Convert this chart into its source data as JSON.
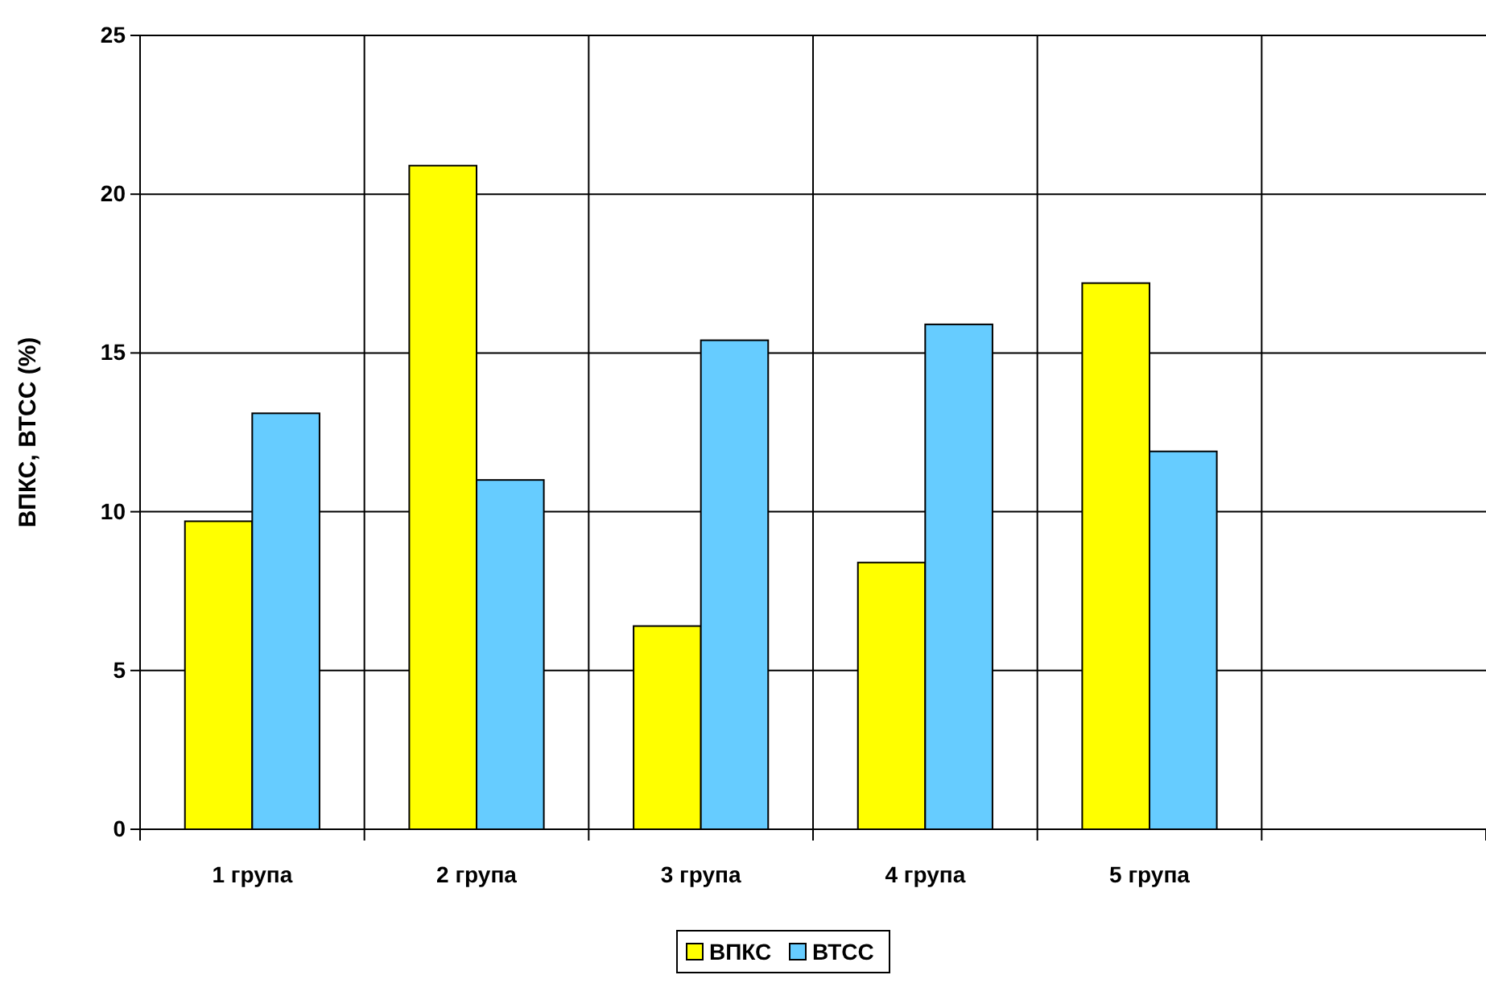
{
  "chart_data": {
    "type": "bar",
    "ylabel": "ВПКС, ВТСС (%)",
    "categories": [
      "1 група",
      "2 група",
      "3 група",
      "4 група",
      "5 група",
      null
    ],
    "series": [
      {
        "name": "ВПКС",
        "color": "#ffff00",
        "values": [
          9.7,
          20.9,
          6.4,
          8.4,
          17.2,
          null
        ]
      },
      {
        "name": "ВТСС",
        "color": "#66ccff",
        "values": [
          13.1,
          11.0,
          15.4,
          15.9,
          11.9,
          null
        ]
      }
    ],
    "ylim": [
      0,
      25
    ],
    "yticks": [
      0,
      5,
      10,
      15,
      20,
      25
    ],
    "grid": true,
    "legend": "bottom"
  }
}
